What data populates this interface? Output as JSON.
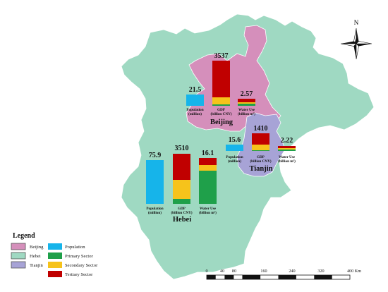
{
  "colors": {
    "beijing_fill": "#d58fbb",
    "hebei_fill": "#9fd9c2",
    "tianjin_fill": "#a7a3d6",
    "sea": "#ffffff",
    "population": "#16b4ea",
    "primary": "#1fa04a",
    "secondary": "#f6c31b",
    "tertiary": "#c00000"
  },
  "icons": {
    "north_arrow": "compass-rose-icon"
  },
  "compass": {
    "label": "N"
  },
  "regions": [
    {
      "id": "beijing",
      "name": "Beijing",
      "population": {
        "value": 21.5,
        "label": "21.5",
        "caption1": "Population",
        "caption2": "(million)"
      },
      "gdp": {
        "total": 3537,
        "label": "3537",
        "primary_share": 0.01,
        "secondary_share": 0.16,
        "tertiary_share": 0.83,
        "caption1": "GDP",
        "caption2": "(billion CNY)"
      },
      "water": {
        "total": 2.57,
        "label": "2.57",
        "primary_share": 0.2,
        "secondary_share": 0.12,
        "tertiary_share": 0.68,
        "caption1": "Water Use",
        "caption2": "(billion m³)"
      }
    },
    {
      "id": "tianjin",
      "name": "Tianjin",
      "population": {
        "value": 15.6,
        "label": "15.6",
        "caption1": "Population",
        "caption2": "(million)"
      },
      "gdp": {
        "total": 1410,
        "label": "1410",
        "primary_share": 0.01,
        "secondary_share": 0.4,
        "tertiary_share": 0.59,
        "caption1": "GDP",
        "caption2": "(billion CNY)"
      },
      "water": {
        "total": 2.22,
        "label": "2.22",
        "primary_share": 0.45,
        "secondary_share": 0.2,
        "tertiary_share": 0.35,
        "caption1": "Water Use",
        "caption2": "(billion m³)"
      }
    },
    {
      "id": "hebei",
      "name": "Hebei",
      "population": {
        "value": 75.9,
        "label": "75.9",
        "caption1": "Population",
        "caption2": "(million)"
      },
      "gdp": {
        "total": 3510,
        "label": "3510",
        "primary_share": 0.09,
        "secondary_share": 0.38,
        "tertiary_share": 0.53,
        "caption1": "GDP",
        "caption2": "(billion CNY)"
      },
      "water": {
        "total": 16.1,
        "label": "16.1",
        "primary_share": 0.66,
        "secondary_share": 0.11,
        "tertiary_share": 0.23,
        "caption1": "Water Use",
        "caption2": "(billion m³)"
      }
    }
  ],
  "legend": {
    "title": "Legend",
    "beijing": "Beijing",
    "hebei": "Hebei",
    "tianjin": "Tianjin",
    "population": "Population",
    "primary": "Primary Sector",
    "secondary": "Secondary Sector",
    "tertiary": "Tertiary Sector"
  },
  "scalebar": {
    "ticks": [
      "0",
      "40",
      "80",
      "160",
      "240",
      "320",
      "400 Km"
    ]
  }
}
